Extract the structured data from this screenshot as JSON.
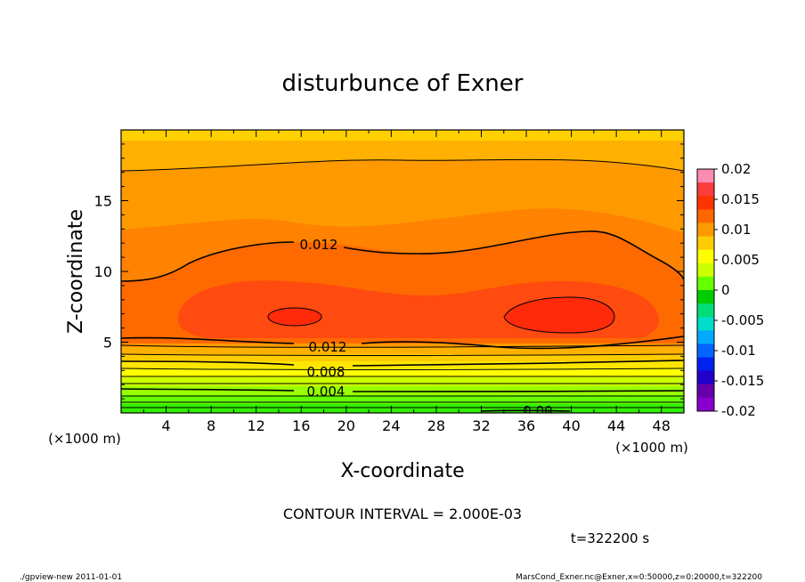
{
  "chart_data": {
    "type": "contour",
    "title": "disturbunce of Exner",
    "xlabel": "X-coordinate",
    "ylabel": "Z-coordinate",
    "x_unit_left": "(×1000 m)",
    "x_unit_right": "(×1000 m)",
    "xlim": [
      0,
      50
    ],
    "ylim": [
      0,
      20
    ],
    "x_ticks": [
      "4",
      "8",
      "12",
      "16",
      "20",
      "24",
      "28",
      "32",
      "36",
      "40",
      "44",
      "48"
    ],
    "y_ticks": [
      "5",
      "10",
      "15"
    ],
    "colorbar": {
      "labels": [
        "0.02",
        "0.015",
        "0.01",
        "0.005",
        "0",
        "-0.005",
        "-0.01",
        "-0.015",
        "-0.02"
      ],
      "range": [
        -0.02,
        0.02
      ],
      "colors": [
        "#fa8cb4",
        "#fa3c3c",
        "#ff3300",
        "#ff6600",
        "#ff9900",
        "#ffcc00",
        "#ffff00",
        "#ccff00",
        "#66ff00",
        "#00cc00",
        "#00dd77",
        "#00ddcc",
        "#00aaff",
        "#0066ff",
        "#0022ee",
        "#2200cc",
        "#6600aa",
        "#8800cc"
      ]
    },
    "contour_labels": [
      "0.012",
      "0.012",
      "0.008",
      "0.004",
      "0.00"
    ],
    "contour_interval": "CONTOUR INTERVAL = 2.000E-03",
    "time_label": "t=322200 s"
  },
  "footer": {
    "left": "./gpview-new   2011-01-01",
    "right": "MarsCond_Exner.nc@Exner,x=0:50000,z=0:20000,t=322200"
  },
  "colors": {
    "max_core": "#ff2a0a",
    "inner": "#ff4a10",
    "mid": "#ff7000",
    "outer": "#ff9200",
    "top": "#ffb000",
    "topmost": "#ffd000"
  }
}
